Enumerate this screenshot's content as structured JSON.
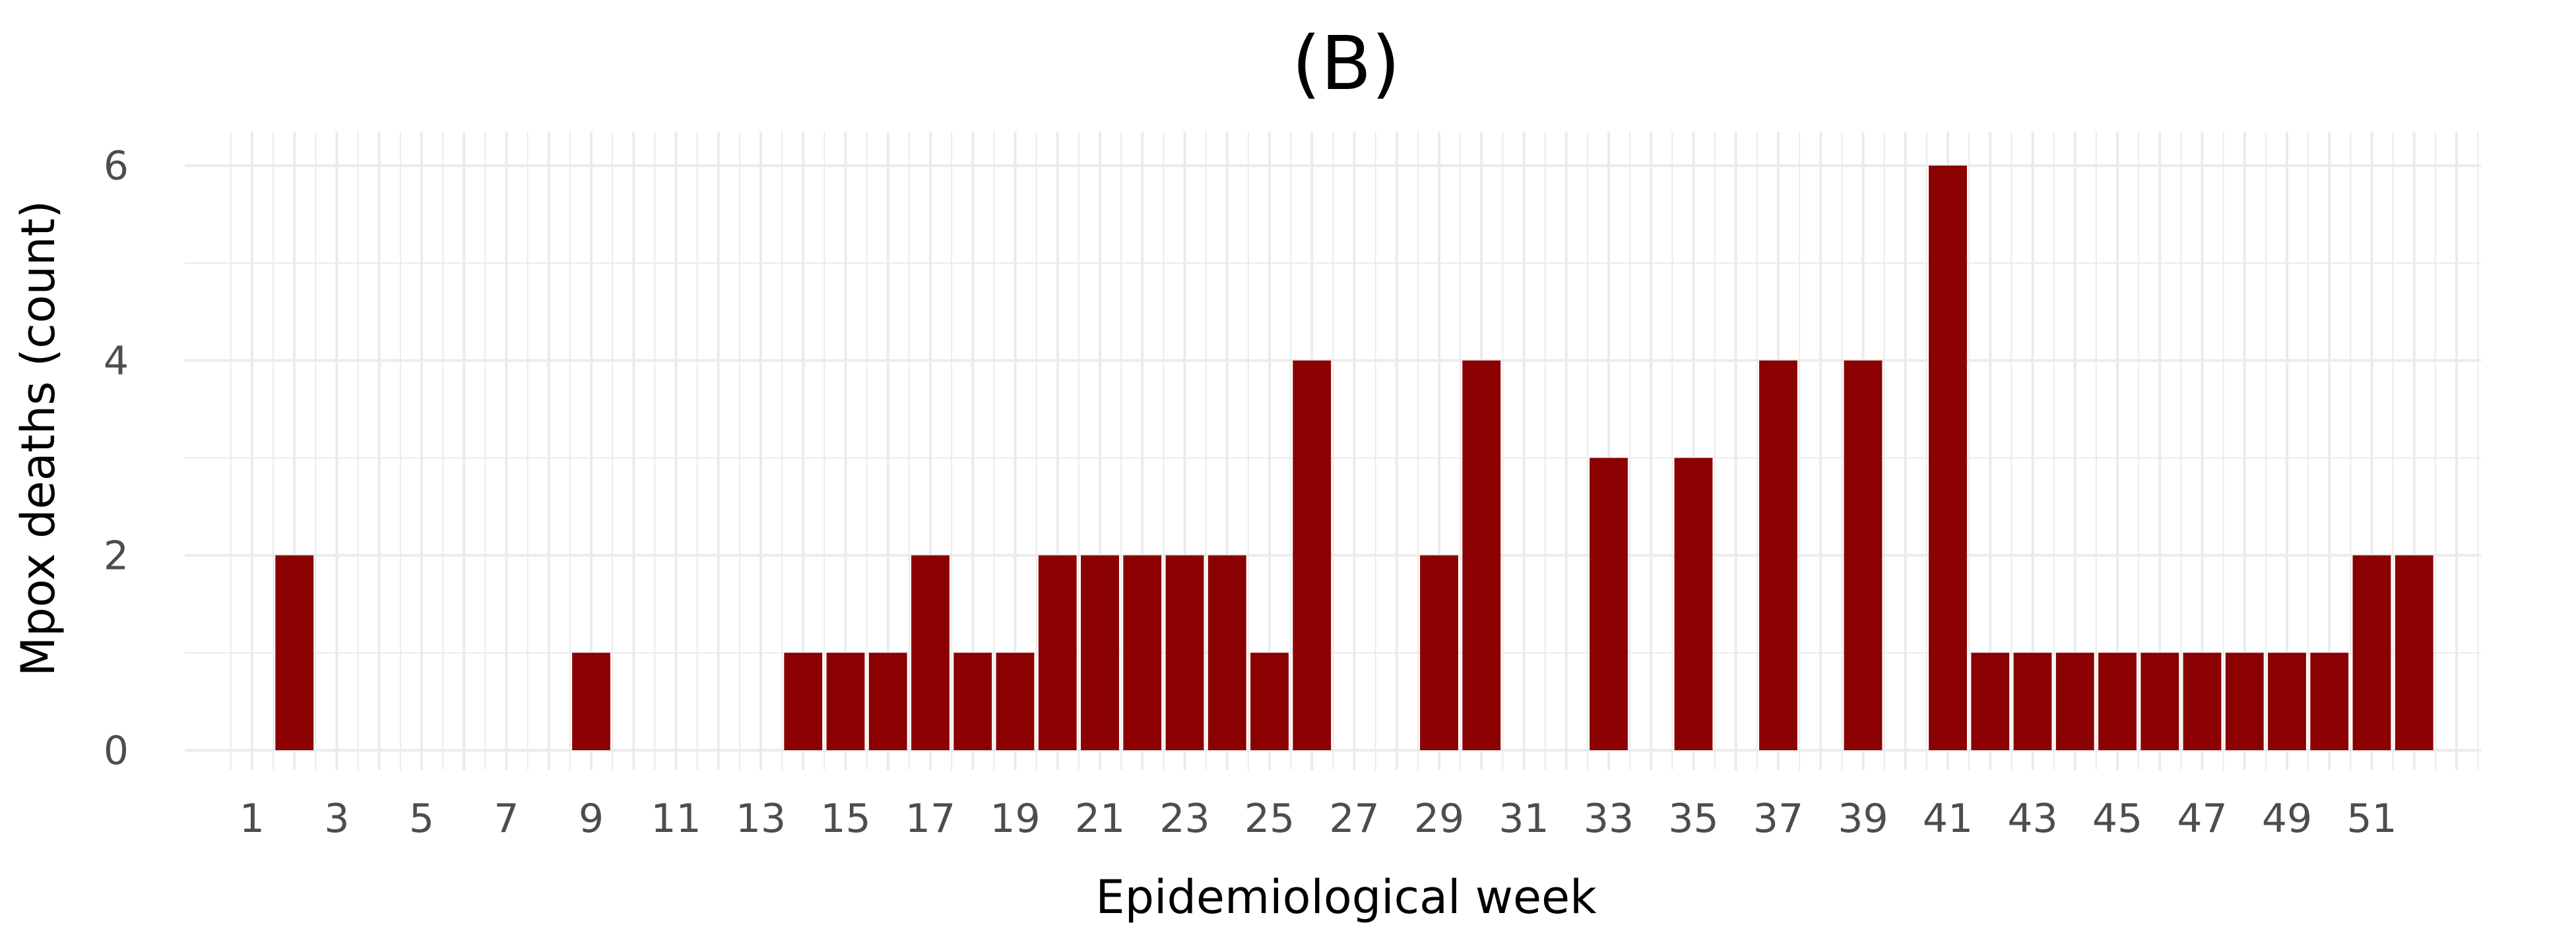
{
  "chart_data": {
    "type": "bar",
    "title": "(B)",
    "xlabel": "Epidemiological week",
    "ylabel": "Mpox deaths (count)",
    "ylim": [
      0,
      6.4
    ],
    "yticks": [
      0,
      2,
      4,
      6
    ],
    "grid": true,
    "xticks": [
      1,
      3,
      5,
      7,
      9,
      11,
      13,
      15,
      17,
      19,
      21,
      23,
      25,
      27,
      29,
      31,
      33,
      35,
      37,
      39,
      41,
      43,
      45,
      47,
      49,
      51
    ],
    "bar_color": "#8B0000",
    "grid_color": "#EBEBEB",
    "x": [
      2,
      9,
      14,
      15,
      16,
      17,
      18,
      19,
      20,
      21,
      22,
      23,
      24,
      25,
      26,
      29,
      30,
      33,
      35,
      37,
      39,
      41,
      42,
      43,
      44,
      45,
      46,
      47,
      48,
      49,
      50,
      51,
      52
    ],
    "values": [
      2,
      1,
      1,
      1,
      1,
      2,
      1,
      1,
      2,
      2,
      2,
      2,
      2,
      1,
      4,
      2,
      4,
      3,
      3,
      4,
      4,
      6,
      1,
      1,
      1,
      1,
      1,
      1,
      1,
      1,
      1,
      2,
      2
    ]
  }
}
